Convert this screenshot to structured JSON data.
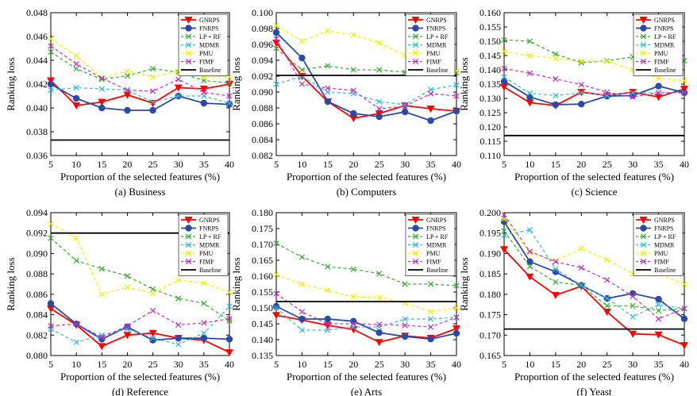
{
  "colors": {
    "GNRPS": "#ff0000",
    "FNRPS": "#2a4aa8",
    "LP + RF": "#3aaa35",
    "MDMR": "#36b8d8",
    "PMU": "#f0f000",
    "FIMF": "#c030c0",
    "Baseline": "#000000"
  },
  "chart_data": [
    {
      "type": "line",
      "caption": "(a) Business",
      "xlabel": "Proportion of the selected features (%)",
      "ylabel": "Ranking loss",
      "x": [
        5,
        10,
        15,
        20,
        25,
        30,
        35,
        40
      ],
      "xlim": [
        5,
        40
      ],
      "ylim": [
        0.036,
        0.048
      ],
      "yticks": [
        "0.036",
        "0.038",
        "0.040",
        "0.042",
        "0.044",
        "0.046",
        "0.048"
      ],
      "yticks_values": [
        0.036,
        0.038,
        0.04,
        0.042,
        0.044,
        0.046,
        0.048
      ],
      "legend": "top-right",
      "series": [
        {
          "name": "GNRPS",
          "values": [
            0.0423,
            0.0402,
            0.0405,
            0.0411,
            0.0404,
            0.0417,
            0.0416,
            0.042
          ]
        },
        {
          "name": "FNRPS",
          "values": [
            0.042,
            0.0408,
            0.04,
            0.0398,
            0.0398,
            0.041,
            0.0404,
            0.0403
          ]
        },
        {
          "name": "LP + RF",
          "values": [
            0.0447,
            0.0433,
            0.0424,
            0.0427,
            0.0433,
            0.043,
            0.0423,
            0.0421
          ]
        },
        {
          "name": "MDMR",
          "values": [
            0.0415,
            0.0417,
            0.0416,
            0.0415,
            0.0405,
            0.041,
            0.041,
            0.0404
          ]
        },
        {
          "name": "PMU",
          "values": [
            0.0458,
            0.0444,
            0.0425,
            0.0431,
            0.0426,
            0.0431,
            0.0426,
            0.0426
          ]
        },
        {
          "name": "FIMF",
          "values": [
            0.0452,
            0.0437,
            0.0425,
            0.0415,
            0.0414,
            0.0424,
            0.0413,
            0.041
          ]
        },
        {
          "name": "Baseline",
          "values": [
            0.0373,
            0.0373,
            0.0373,
            0.0373,
            0.0373,
            0.0373,
            0.0373,
            0.0373
          ]
        }
      ]
    },
    {
      "type": "line",
      "caption": "(b) Computers",
      "xlabel": "Proportion of the selected features (%)",
      "ylabel": "Ranking loss",
      "x": [
        5,
        10,
        15,
        20,
        25,
        30,
        35,
        40
      ],
      "xlim": [
        5,
        40
      ],
      "ylim": [
        0.082,
        0.1
      ],
      "yticks": [
        "0.082",
        "0.084",
        "0.086",
        "0.088",
        "0.090",
        "0.092",
        "0.094",
        "0.096",
        "0.098",
        "0.100"
      ],
      "yticks_values": [
        0.082,
        0.084,
        0.086,
        0.088,
        0.09,
        0.092,
        0.094,
        0.096,
        0.098,
        0.1
      ],
      "legend": "top-right",
      "series": [
        {
          "name": "GNRPS",
          "values": [
            0.0962,
            0.092,
            0.0888,
            0.0867,
            0.0873,
            0.0883,
            0.0879,
            0.0876
          ]
        },
        {
          "name": "FNRPS",
          "values": [
            0.0975,
            0.0943,
            0.0888,
            0.0873,
            0.0869,
            0.0875,
            0.0864,
            0.0876
          ]
        },
        {
          "name": "LP + RF",
          "values": [
            0.0955,
            0.0928,
            0.0933,
            0.0928,
            0.0928,
            0.0925,
            0.0924,
            0.0924
          ]
        },
        {
          "name": "MDMR",
          "values": [
            0.091,
            0.092,
            0.09,
            0.0898,
            0.0888,
            0.0884,
            0.0903,
            0.0909
          ]
        },
        {
          "name": "PMU",
          "values": [
            0.0984,
            0.0964,
            0.0977,
            0.0972,
            0.0962,
            0.0946,
            0.0933,
            0.0927
          ]
        },
        {
          "name": "FIMF",
          "values": [
            0.0967,
            0.091,
            0.0905,
            0.0902,
            0.0879,
            0.0882,
            0.0898,
            0.0895
          ]
        },
        {
          "name": "Baseline",
          "values": [
            0.0921,
            0.0921,
            0.0921,
            0.0921,
            0.0921,
            0.0921,
            0.0921,
            0.0921
          ]
        }
      ]
    },
    {
      "type": "line",
      "caption": "(c) Science",
      "xlabel": "Proportion of the selected features (%)",
      "ylabel": "Ranking loss",
      "x": [
        5,
        10,
        15,
        20,
        25,
        30,
        35,
        40
      ],
      "xlim": [
        5,
        40
      ],
      "ylim": [
        0.11,
        0.16
      ],
      "yticks": [
        "0.110",
        "0.115",
        "0.120",
        "0.125",
        "0.130",
        "0.135",
        "0.140",
        "0.145",
        "0.150",
        "0.155",
        "0.160"
      ],
      "yticks_values": [
        0.11,
        0.115,
        0.12,
        0.125,
        0.13,
        0.135,
        0.14,
        0.145,
        0.15,
        0.155,
        0.16
      ],
      "legend": "top-right",
      "series": [
        {
          "name": "GNRPS",
          "values": [
            0.134,
            0.1285,
            0.1275,
            0.1322,
            0.131,
            0.1322,
            0.1305,
            0.1333
          ]
        },
        {
          "name": "FNRPS",
          "values": [
            0.136,
            0.1305,
            0.1278,
            0.128,
            0.1308,
            0.131,
            0.1343,
            0.132
          ]
        },
        {
          "name": "LP + RF",
          "values": [
            0.1505,
            0.15,
            0.1455,
            0.1425,
            0.1432,
            0.1445,
            0.1418,
            0.1432
          ]
        },
        {
          "name": "MDMR",
          "values": [
            0.1375,
            0.1318,
            0.131,
            0.132,
            0.131,
            0.132,
            0.132,
            0.132
          ]
        },
        {
          "name": "PMU",
          "values": [
            0.1465,
            0.145,
            0.144,
            0.143,
            0.143,
            0.14,
            0.137,
            0.1362
          ]
        },
        {
          "name": "FIMF",
          "values": [
            0.1405,
            0.1388,
            0.1368,
            0.1348,
            0.1322,
            0.1305,
            0.132,
            0.132
          ]
        },
        {
          "name": "Baseline",
          "values": [
            0.117,
            0.117,
            0.117,
            0.117,
            0.117,
            0.117,
            0.117,
            0.117
          ]
        }
      ]
    },
    {
      "type": "line",
      "caption": "(d) Reference",
      "xlabel": "Proportion of the selected features (%)",
      "ylabel": "Ranking loss",
      "x": [
        5,
        10,
        15,
        20,
        25,
        30,
        35,
        40
      ],
      "xlim": [
        5,
        40
      ],
      "ylim": [
        0.08,
        0.094
      ],
      "yticks": [
        "0.080",
        "0.082",
        "0.084",
        "0.086",
        "0.088",
        "0.090",
        "0.092",
        "0.094"
      ],
      "yticks_values": [
        0.08,
        0.082,
        0.084,
        0.086,
        0.088,
        0.09,
        0.092,
        0.094
      ],
      "legend": "top-right",
      "series": [
        {
          "name": "GNRPS",
          "values": [
            0.0846,
            0.083,
            0.0809,
            0.082,
            0.0822,
            0.0817,
            0.0815,
            0.0803
          ]
        },
        {
          "name": "FNRPS",
          "values": [
            0.0851,
            0.0831,
            0.0816,
            0.0828,
            0.0815,
            0.0817,
            0.0817,
            0.0816
          ]
        },
        {
          "name": "LP + RF",
          "values": [
            0.0915,
            0.0893,
            0.0885,
            0.0878,
            0.0865,
            0.0856,
            0.0851,
            0.0834
          ]
        },
        {
          "name": "MDMR",
          "values": [
            0.0826,
            0.0813,
            0.082,
            0.0826,
            0.0817,
            0.0811,
            0.0822,
            0.0848
          ]
        },
        {
          "name": "PMU",
          "values": [
            0.0929,
            0.0915,
            0.086,
            0.0867,
            0.0861,
            0.0874,
            0.0871,
            0.0862
          ]
        },
        {
          "name": "FIMF",
          "values": [
            0.0829,
            0.0831,
            0.0818,
            0.0829,
            0.0844,
            0.083,
            0.0832,
            0.0836
          ]
        },
        {
          "name": "Baseline",
          "values": [
            0.092,
            0.092,
            0.092,
            0.092,
            0.092,
            0.092,
            0.092,
            0.092
          ]
        }
      ]
    },
    {
      "type": "line",
      "caption": "(e) Arts",
      "xlabel": "Proportion of the selected features (%)",
      "ylabel": "Ranking loss",
      "x": [
        5,
        10,
        15,
        20,
        25,
        30,
        35,
        40
      ],
      "xlim": [
        5,
        40
      ],
      "ylim": [
        0.135,
        0.18
      ],
      "yticks": [
        "0.135",
        "0.140",
        "0.145",
        "0.150",
        "0.155",
        "0.160",
        "0.165",
        "0.170",
        "0.175",
        "0.180"
      ],
      "yticks_values": [
        0.135,
        0.14,
        0.145,
        0.15,
        0.155,
        0.16,
        0.165,
        0.17,
        0.175,
        0.18
      ],
      "legend": "top-right",
      "series": [
        {
          "name": "GNRPS",
          "values": [
            0.1477,
            0.1462,
            0.1445,
            0.1432,
            0.1392,
            0.1412,
            0.1405,
            0.1435
          ]
        },
        {
          "name": "FNRPS",
          "values": [
            0.1505,
            0.1465,
            0.1465,
            0.1458,
            0.1422,
            0.141,
            0.1402,
            0.142
          ]
        },
        {
          "name": "LP + RF",
          "values": [
            0.1703,
            0.166,
            0.163,
            0.1622,
            0.1608,
            0.1575,
            0.1575,
            0.157
          ]
        },
        {
          "name": "MDMR",
          "values": [
            0.15,
            0.143,
            0.143,
            0.144,
            0.144,
            0.1465,
            0.1465,
            0.147
          ]
        },
        {
          "name": "PMU",
          "values": [
            0.1605,
            0.1575,
            0.1555,
            0.1535,
            0.1532,
            0.1515,
            0.1488,
            0.15
          ]
        },
        {
          "name": "FIMF",
          "values": [
            0.1545,
            0.1488,
            0.145,
            0.145,
            0.1448,
            0.1445,
            0.144,
            0.147
          ]
        },
        {
          "name": "Baseline",
          "values": [
            0.152,
            0.152,
            0.152,
            0.152,
            0.152,
            0.152,
            0.152,
            0.152
          ]
        }
      ]
    },
    {
      "type": "line",
      "caption": "(f) Yeast",
      "xlabel": "Proportion of the selected features (%)",
      "ylabel": "Ranking loss",
      "x": [
        5,
        10,
        15,
        20,
        25,
        30,
        35,
        40
      ],
      "xlim": [
        5,
        40
      ],
      "ylim": [
        0.165,
        0.2
      ],
      "yticks": [
        "0.165",
        "0.170",
        "0.175",
        "0.180",
        "0.185",
        "0.190",
        "0.195",
        "0.200"
      ],
      "yticks_values": [
        0.165,
        0.17,
        0.175,
        0.18,
        0.185,
        0.19,
        0.195,
        0.2
      ],
      "legend": "top-right",
      "series": [
        {
          "name": "GNRPS",
          "values": [
            0.191,
            0.1843,
            0.1798,
            0.182,
            0.1757,
            0.1703,
            0.1701,
            0.1675
          ]
        },
        {
          "name": "FNRPS",
          "values": [
            0.1978,
            0.188,
            0.1855,
            0.1822,
            0.179,
            0.1802,
            0.1788,
            0.174
          ]
        },
        {
          "name": "LP + RF",
          "values": [
            0.1955,
            0.1868,
            0.183,
            0.1822,
            0.1772,
            0.1772,
            0.176,
            0.1765
          ]
        },
        {
          "name": "MDMR",
          "values": [
            0.1945,
            0.1958,
            0.1862,
            0.1822,
            0.179,
            0.1745,
            0.1775,
            0.1765
          ]
        },
        {
          "name": "PMU",
          "values": [
            0.1985,
            0.1902,
            0.1882,
            0.1912,
            0.1885,
            0.185,
            0.185,
            0.1825
          ]
        },
        {
          "name": "FIMF",
          "values": [
            0.1995,
            0.1905,
            0.188,
            0.1865,
            0.1835,
            0.1795,
            0.174,
            0.1765
          ]
        },
        {
          "name": "Baseline",
          "values": [
            0.1715,
            0.1715,
            0.1715,
            0.1715,
            0.1715,
            0.1715,
            0.1715,
            0.1715
          ]
        }
      ]
    }
  ]
}
